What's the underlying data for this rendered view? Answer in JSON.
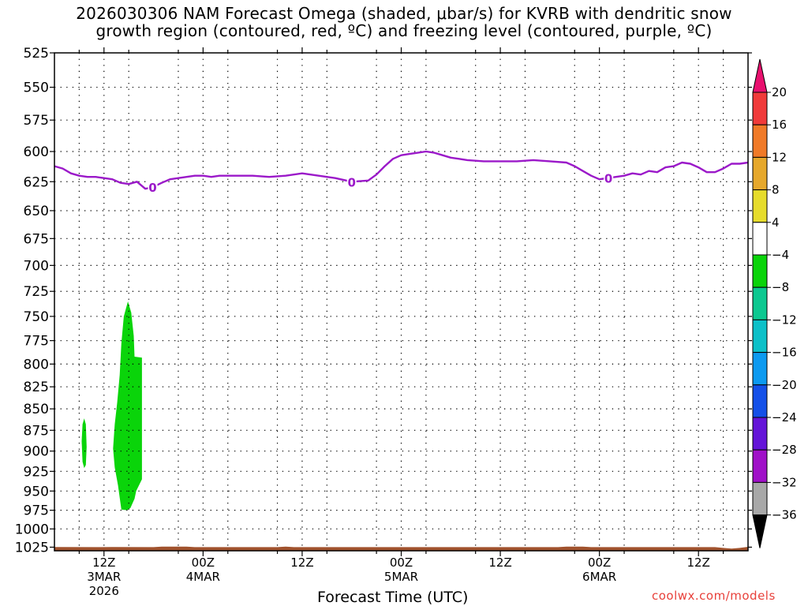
{
  "title": {
    "line1": "2026030306 NAM Forecast Omega (shaded, μbar/s) for KVRB with dendritic snow",
    "line2": "growth region (contoured, red, ºC) and freezing level (contoured, purple, ºC)"
  },
  "xlabel": "Forecast Time (UTC)",
  "credit": "coolwx.com/models",
  "chart_data": {
    "type": "heatmap",
    "title": "2026030306 NAM Forecast Omega (shaded, μbar/s) for KVRB with dendritic snow growth region (contoured, red, ºC) and freezing level (contoured, purple, ºC)",
    "xlabel": "Forecast Time (UTC)",
    "ylabel": "",
    "x_units": "hours after 2026-03-03 06Z",
    "xlim": [
      0,
      84
    ],
    "ylim": [
      1030,
      525
    ],
    "y_scale": "log-pressure (reversed)",
    "y_ticks": [
      525,
      550,
      575,
      600,
      625,
      650,
      675,
      700,
      725,
      750,
      775,
      800,
      825,
      850,
      875,
      900,
      925,
      950,
      975,
      1000,
      1025
    ],
    "x_ticks": [
      {
        "x": 6,
        "lines": [
          "12Z",
          "3MAR",
          "2026"
        ]
      },
      {
        "x": 18,
        "lines": [
          "00Z",
          "4MAR"
        ]
      },
      {
        "x": 30,
        "lines": [
          "12Z"
        ]
      },
      {
        "x": 42,
        "lines": [
          "00Z",
          "5MAR"
        ]
      },
      {
        "x": 54,
        "lines": [
          "12Z"
        ]
      },
      {
        "x": 66,
        "lines": [
          "00Z",
          "6MAR"
        ]
      },
      {
        "x": 78,
        "lines": [
          "12Z"
        ]
      }
    ],
    "grid": true,
    "colorbar": {
      "levels": [
        20,
        16,
        12,
        8,
        4,
        -4,
        -8,
        -12,
        -16,
        -20,
        -24,
        -28,
        -32,
        -36
      ],
      "colors": [
        "#e8106e",
        "#f03a3a",
        "#f07a28",
        "#e6a82c",
        "#e6dc2c",
        "#ffffff",
        "#0ad40a",
        "#0cc890",
        "#0cc0c8",
        "#0c9af0",
        "#1450e8",
        "#6414d8",
        "#a010c8",
        "#a8a8a8",
        "#000000"
      ]
    },
    "freezing_level": {
      "label": "0",
      "color": "#9b19c9",
      "label_x": [
        11.9,
        36.0,
        67.1
      ],
      "points": [
        [
          0.0,
          612
        ],
        [
          1.0,
          614
        ],
        [
          2.0,
          618
        ],
        [
          3.0,
          620
        ],
        [
          4.0,
          621
        ],
        [
          5.0,
          621
        ],
        [
          6.0,
          622
        ],
        [
          7.0,
          623
        ],
        [
          8.0,
          626
        ],
        [
          9.0,
          627
        ],
        [
          10.0,
          625
        ],
        [
          11.0,
          631
        ],
        [
          11.8,
          630
        ],
        [
          13.0,
          626
        ],
        [
          14.0,
          623
        ],
        [
          15.0,
          622
        ],
        [
          16.0,
          621
        ],
        [
          17.0,
          620
        ],
        [
          18.0,
          620
        ],
        [
          19.0,
          621
        ],
        [
          20.0,
          620
        ],
        [
          22.0,
          620
        ],
        [
          24.0,
          620
        ],
        [
          26.0,
          621
        ],
        [
          28.0,
          620
        ],
        [
          30.0,
          618
        ],
        [
          32.0,
          620
        ],
        [
          34.0,
          622
        ],
        [
          36.0,
          625
        ],
        [
          38.0,
          624
        ],
        [
          39.0,
          619
        ],
        [
          40.0,
          612
        ],
        [
          41.0,
          606
        ],
        [
          42.0,
          603
        ],
        [
          43.0,
          602
        ],
        [
          44.0,
          601
        ],
        [
          45.0,
          600
        ],
        [
          46.0,
          601
        ],
        [
          47.0,
          603
        ],
        [
          48.0,
          605
        ],
        [
          49.0,
          606
        ],
        [
          50.0,
          607
        ],
        [
          52.0,
          608
        ],
        [
          54.0,
          608
        ],
        [
          56.0,
          608
        ],
        [
          58.0,
          607
        ],
        [
          60.0,
          608
        ],
        [
          62.0,
          609
        ],
        [
          63.0,
          612
        ],
        [
          64.0,
          616
        ],
        [
          65.0,
          620
        ],
        [
          66.0,
          623
        ],
        [
          67.0,
          622
        ],
        [
          68.0,
          621
        ],
        [
          69.0,
          620
        ],
        [
          70.0,
          618
        ],
        [
          71.0,
          619
        ],
        [
          72.0,
          616
        ],
        [
          73.0,
          617
        ],
        [
          74.0,
          613
        ],
        [
          75.0,
          612
        ],
        [
          76.0,
          609
        ],
        [
          77.0,
          610
        ],
        [
          78.0,
          613
        ],
        [
          79.0,
          617
        ],
        [
          80.0,
          617
        ],
        [
          81.0,
          614
        ],
        [
          82.0,
          610
        ],
        [
          83.0,
          610
        ],
        [
          84.0,
          609
        ]
      ]
    },
    "omega_regions": [
      {
        "level": "-4 to -8",
        "color": "#0ad40a",
        "outline": [
          [
            3.6,
            861
          ],
          [
            3.8,
            868
          ],
          [
            3.9,
            895
          ],
          [
            3.8,
            917
          ],
          [
            3.6,
            921
          ],
          [
            3.4,
            913
          ],
          [
            3.3,
            888
          ],
          [
            3.4,
            868
          ]
        ]
      },
      {
        "level": "-4 to -8",
        "color": "#0ad40a",
        "outline": [
          [
            8.9,
            735
          ],
          [
            9.3,
            746
          ],
          [
            9.6,
            770
          ],
          [
            9.7,
            792
          ],
          [
            10.6,
            793
          ],
          [
            10.6,
            935
          ],
          [
            9.9,
            950
          ],
          [
            9.7,
            960
          ],
          [
            9.2,
            972
          ],
          [
            8.8,
            975
          ],
          [
            8.1,
            974
          ],
          [
            8.0,
            966
          ],
          [
            7.7,
            943
          ],
          [
            7.3,
            920
          ],
          [
            7.1,
            897
          ],
          [
            7.3,
            868
          ],
          [
            7.6,
            843
          ],
          [
            7.9,
            812
          ],
          [
            8.1,
            778
          ],
          [
            8.4,
            750
          ]
        ]
      }
    ],
    "terrain": {
      "color": "#a0522d",
      "points": [
        [
          0,
          1024.8
        ],
        [
          5,
          1025
        ],
        [
          7,
          1024.7
        ],
        [
          12,
          1025
        ],
        [
          13,
          1024.2
        ],
        [
          16,
          1024.3
        ],
        [
          17,
          1025
        ],
        [
          27,
          1025
        ],
        [
          28,
          1024.2
        ],
        [
          29,
          1025
        ],
        [
          61,
          1025
        ],
        [
          62,
          1024.2
        ],
        [
          64,
          1024.3
        ],
        [
          65,
          1025
        ],
        [
          80,
          1025
        ],
        [
          81,
          1026
        ],
        [
          82,
          1027
        ],
        [
          83,
          1026
        ],
        [
          84,
          1024.5
        ]
      ]
    }
  }
}
